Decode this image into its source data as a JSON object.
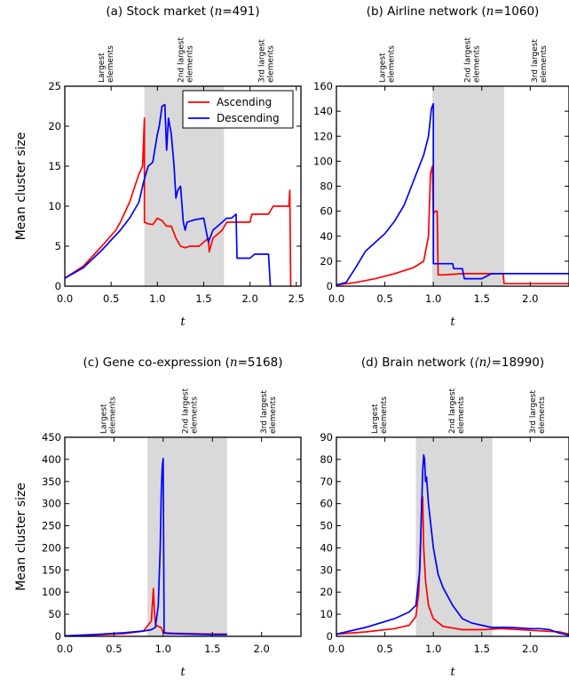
{
  "chart_data": [
    {
      "type": "line",
      "title_plain": "(a) Stock market (",
      "title_var": "n",
      "title_value": "=491)",
      "xlabel": "t",
      "ylabel": "Mean cluster size",
      "xlim": [
        0,
        2.55
      ],
      "ylim": [
        0,
        25
      ],
      "xticks": [
        0.0,
        0.5,
        1.0,
        1.5,
        2.0,
        2.5
      ],
      "xtick_labels": [
        "0.0",
        "0.5",
        "1.0",
        "1.5",
        "2.0",
        "2.5"
      ],
      "yticks": [
        0,
        5,
        10,
        15,
        20,
        25
      ],
      "ytick_labels": [
        "0",
        "5",
        "10",
        "15",
        "20",
        "25"
      ],
      "shade": [
        0.86,
        1.72
      ],
      "annotations": [
        {
          "lines": [
            "Largest",
            "elements"
          ],
          "x": 0.42
        },
        {
          "lines": [
            "2nd largest",
            "elements"
          ],
          "x": 1.28
        },
        {
          "lines": [
            "3rd largest",
            "elements"
          ],
          "x": 2.15
        }
      ],
      "legend": {
        "position": "top-right",
        "entries": [
          "Ascending",
          "Descending"
        ]
      },
      "series": [
        {
          "name": "Ascending",
          "color": "#ff0000",
          "x": [
            0,
            0.2,
            0.4,
            0.55,
            0.6,
            0.7,
            0.8,
            0.84,
            0.86,
            0.86,
            0.9,
            0.95,
            1.0,
            1.05,
            1.1,
            1.15,
            1.2,
            1.25,
            1.3,
            1.35,
            1.45,
            1.5,
            1.55,
            1.56,
            1.6,
            1.7,
            1.75,
            1.8,
            2.0,
            2.02,
            2.1,
            2.2,
            2.25,
            2.3,
            2.42,
            2.43,
            2.44
          ],
          "y": [
            1,
            2.5,
            5,
            7,
            8,
            10.5,
            14,
            15,
            21,
            8,
            7.8,
            7.7,
            8.5,
            8.2,
            7.5,
            7.5,
            6,
            5,
            4.8,
            5,
            5,
            5.5,
            6,
            4.3,
            6,
            7,
            8,
            8,
            8,
            9,
            9,
            9,
            10,
            10,
            10,
            12,
            0
          ]
        },
        {
          "name": "Descending",
          "color": "#0000ff",
          "x": [
            0,
            0.2,
            0.4,
            0.6,
            0.7,
            0.8,
            0.85,
            0.9,
            0.95,
            1.0,
            1.02,
            1.05,
            1.08,
            1.1,
            1.12,
            1.15,
            1.18,
            1.2,
            1.22,
            1.25,
            1.28,
            1.3,
            1.32,
            1.4,
            1.5,
            1.55,
            1.6,
            1.65,
            1.7,
            1.75,
            1.8,
            1.85,
            1.86,
            2.0,
            2.05,
            2.2,
            2.22
          ],
          "y": [
            1,
            2.3,
            4.5,
            7,
            8.5,
            10.5,
            13,
            15,
            15.5,
            19,
            20,
            22.5,
            22.7,
            17,
            21,
            19,
            15,
            11,
            12,
            12.5,
            8,
            7,
            8,
            8.3,
            8.5,
            5.5,
            7,
            7.5,
            8,
            8.5,
            8.5,
            9,
            3.5,
            3.5,
            4,
            4,
            0
          ]
        }
      ]
    },
    {
      "type": "line",
      "title_plain": "(b) Airline network (",
      "title_var": "n",
      "title_value": "=1060)",
      "xlabel": "t",
      "ylabel": "",
      "xlim": [
        0,
        2.4
      ],
      "ylim": [
        0,
        160
      ],
      "xticks": [
        0.0,
        0.5,
        1.0,
        1.5,
        2.0
      ],
      "xtick_labels": [
        "0.0",
        "0.5",
        "1.0",
        "1.5",
        "2.0"
      ],
      "yticks": [
        0,
        20,
        40,
        60,
        80,
        100,
        120,
        140,
        160
      ],
      "ytick_labels": [
        "0",
        "20",
        "40",
        "60",
        "80",
        "100",
        "120",
        "140",
        "160"
      ],
      "shade": [
        0.99,
        1.73
      ],
      "annotations": [
        {
          "lines": [
            "Largest",
            "elements"
          ],
          "x": 0.5
        },
        {
          "lines": [
            "2nd largest",
            "elements"
          ],
          "x": 1.38
        },
        {
          "lines": [
            "3rd largest",
            "elements"
          ],
          "x": 2.07
        }
      ],
      "series": [
        {
          "name": "Ascending",
          "color": "#ff0000",
          "x": [
            0,
            0.2,
            0.4,
            0.6,
            0.8,
            0.9,
            0.95,
            0.97,
            0.99,
            1.0,
            1.02,
            1.04,
            1.05,
            1.1,
            1.3,
            1.5,
            1.72,
            1.73,
            2.0,
            2.4
          ],
          "y": [
            1,
            3,
            6,
            10,
            15,
            20,
            40,
            90,
            96,
            58,
            60,
            60,
            9,
            9,
            10,
            10,
            10,
            2,
            2,
            2
          ]
        },
        {
          "name": "Descending",
          "color": "#0000ff",
          "x": [
            0,
            0.1,
            0.2,
            0.3,
            0.4,
            0.5,
            0.6,
            0.7,
            0.8,
            0.9,
            0.95,
            0.98,
            1.0,
            1.0,
            1.1,
            1.2,
            1.21,
            1.3,
            1.32,
            1.5,
            1.6,
            1.75,
            2.0,
            2.4
          ],
          "y": [
            1,
            3,
            15,
            28,
            35,
            42,
            52,
            65,
            85,
            105,
            120,
            142,
            146,
            18,
            18,
            18,
            14,
            14,
            6,
            6,
            10,
            10,
            10,
            10
          ]
        }
      ]
    },
    {
      "type": "line",
      "title_plain": "(c) Gene co-expression (",
      "title_var": "n",
      "title_value": "=5168)",
      "xlabel": "t",
      "ylabel": "Mean cluster size",
      "xlim": [
        0,
        2.4
      ],
      "ylim": [
        0,
        450
      ],
      "xticks": [
        0.0,
        0.5,
        1.0,
        1.5,
        2.0
      ],
      "xtick_labels": [
        "0.0",
        "0.5",
        "1.0",
        "1.5",
        "2.0"
      ],
      "yticks": [
        0,
        50,
        100,
        150,
        200,
        250,
        300,
        350,
        400,
        450
      ],
      "ytick_labels": [
        "0",
        "50",
        "100",
        "150",
        "200",
        "250",
        "300",
        "350",
        "400",
        "450"
      ],
      "shade": [
        0.84,
        1.65
      ],
      "annotations": [
        {
          "lines": [
            "Largest",
            "elements"
          ],
          "x": 0.42
        },
        {
          "lines": [
            "2nd largest",
            "elements"
          ],
          "x": 1.25
        },
        {
          "lines": [
            "3rd largest",
            "elements"
          ],
          "x": 2.05
        }
      ],
      "series": [
        {
          "name": "Ascending",
          "color": "#ff0000",
          "x": [
            0,
            0.3,
            0.6,
            0.8,
            0.88,
            0.9,
            0.91,
            0.92,
            0.93,
            0.95,
            0.98,
            1.0,
            1.1,
            1.3,
            1.5,
            1.65
          ],
          "y": [
            1,
            3,
            6,
            12,
            35,
            108,
            60,
            30,
            25,
            22,
            20,
            8,
            7,
            6,
            5,
            5
          ]
        },
        {
          "name": "Descending",
          "color": "#0000ff",
          "x": [
            0,
            0.3,
            0.6,
            0.8,
            0.88,
            0.92,
            0.95,
            0.97,
            0.98,
            0.99,
            1.0,
            1.01,
            1.02,
            1.1,
            1.3,
            1.5,
            1.65
          ],
          "y": [
            1,
            4,
            8,
            12,
            15,
            20,
            70,
            200,
            320,
            380,
            402,
            10,
            7,
            6,
            5,
            4,
            4
          ]
        }
      ]
    },
    {
      "type": "line",
      "title_plain": "(d) Brain network (",
      "title_var": "⟨n⟩",
      "title_value": "=18990)",
      "xlabel": "t",
      "ylabel": "",
      "xlim": [
        0,
        2.4
      ],
      "ylim": [
        0,
        90
      ],
      "xticks": [
        0.0,
        0.5,
        1.0,
        1.5,
        2.0
      ],
      "xtick_labels": [
        "0.0",
        "0.5",
        "1.0",
        "1.5",
        "2.0"
      ],
      "yticks": [
        0,
        10,
        20,
        30,
        40,
        50,
        60,
        70,
        80,
        90
      ],
      "ytick_labels": [
        "0",
        "10",
        "20",
        "30",
        "40",
        "50",
        "60",
        "70",
        "80",
        "90"
      ],
      "shade": [
        0.82,
        1.61
      ],
      "annotations": [
        {
          "lines": [
            "Largest",
            "elements"
          ],
          "x": 0.42
        },
        {
          "lines": [
            "2nd largest",
            "elements"
          ],
          "x": 1.22
        },
        {
          "lines": [
            "3rd largest",
            "elements"
          ],
          "x": 2.05
        }
      ],
      "series": [
        {
          "name": "Ascending",
          "color": "#ff0000",
          "x": [
            0,
            0.3,
            0.6,
            0.75,
            0.82,
            0.85,
            0.87,
            0.88,
            0.89,
            0.9,
            0.92,
            0.95,
            1.0,
            1.1,
            1.3,
            1.5,
            1.7,
            1.9,
            2.1,
            2.3,
            2.4
          ],
          "y": [
            1,
            2,
            3.5,
            5,
            9,
            20,
            45,
            62,
            63,
            40,
            25,
            14,
            8,
            4.5,
            3,
            3,
            3.5,
            3,
            2.5,
            2,
            1
          ]
        },
        {
          "name": "Descending",
          "color": "#0000ff",
          "x": [
            0,
            0.3,
            0.6,
            0.75,
            0.82,
            0.86,
            0.88,
            0.89,
            0.9,
            0.91,
            0.92,
            0.93,
            0.95,
            0.97,
            1.0,
            1.05,
            1.1,
            1.2,
            1.3,
            1.4,
            1.6,
            1.8,
            2.0,
            2.1,
            2.2,
            2.3,
            2.4
          ],
          "y": [
            1,
            4,
            8,
            11,
            14,
            30,
            60,
            75,
            82,
            80,
            70,
            72,
            60,
            52,
            40,
            28,
            22,
            14,
            8,
            6,
            4,
            4,
            3.5,
            3.5,
            3,
            1.5,
            0.5
          ]
        }
      ]
    }
  ]
}
